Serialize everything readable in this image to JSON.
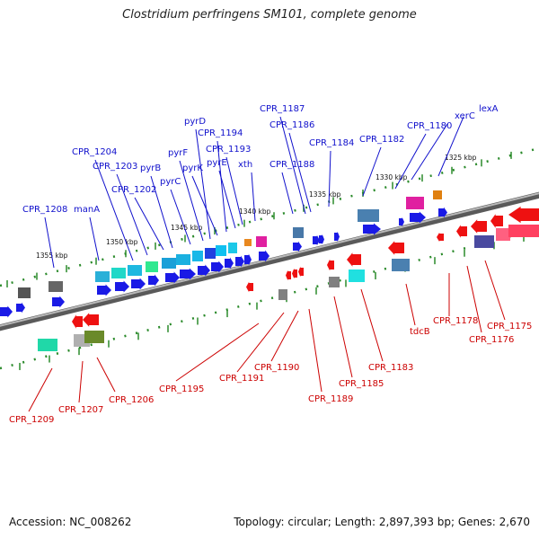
{
  "title": "Clostridium perfringens SM101, complete genome",
  "footer": {
    "accession": "Accession: NC_008262",
    "summary": "Topology: circular; Length: 2,897,393 bp; Genes: 2,670"
  },
  "colors": {
    "forward_label": "#1010cc",
    "reverse_label": "#cc0000",
    "forward_arrow": "#1a1ae6",
    "reverse_arrow": "#ee1111",
    "backbone": "#808080",
    "tick": "#2a8a2a"
  },
  "ruler": {
    "unit": "kbp",
    "ticks": [
      "1325 kbp",
      "1330 kbp",
      "1335 kbp",
      "1340 kbp",
      "1345 kbp",
      "1350 kbp",
      "1355 kbp"
    ]
  },
  "forward_labels": [
    "lexA",
    "xerC",
    "CPR_1180",
    "CPR_1182",
    "CPR_1184",
    "CPR_1186",
    "CPR_1187",
    "CPR_1188",
    "xth",
    "CPR_1193",
    "pyrE",
    "CPR_1194",
    "pyrK",
    "pyrD",
    "pyrF",
    "pyrC",
    "pyrB",
    "CPR_1202",
    "CPR_1203",
    "CPR_1204",
    "manA",
    "CPR_1208"
  ],
  "reverse_labels": [
    "CPR_1175",
    "CPR_1176",
    "CPR_1178",
    "tdcB",
    "CPR_1183",
    "CPR_1185",
    "CPR_1189",
    "CPR_1190",
    "CPR_1191",
    "CPR_1195",
    "CPR_1206",
    "CPR_1207",
    "CPR_1209"
  ]
}
